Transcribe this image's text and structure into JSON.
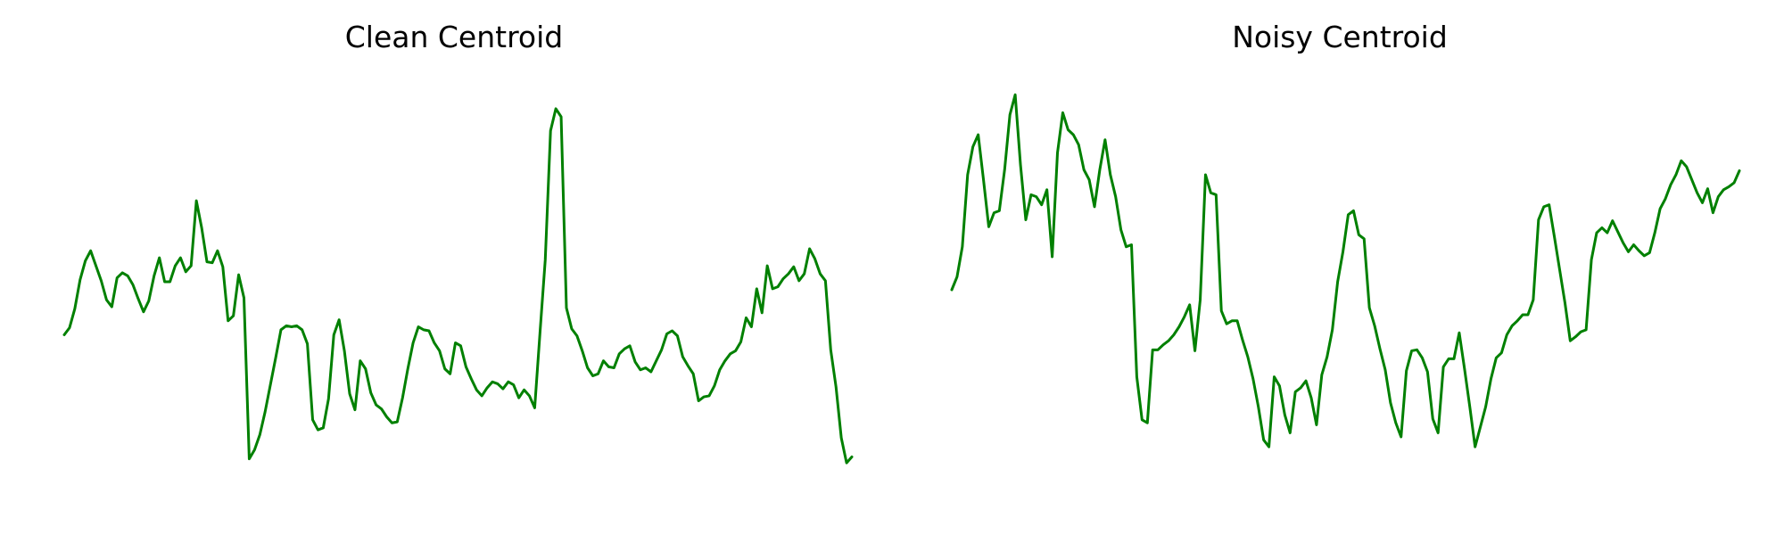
{
  "figure": {
    "line_color": "#008000"
  },
  "chart_data": [
    {
      "type": "line",
      "title": "Clean Centroid",
      "xlabel": "",
      "ylabel": "",
      "axes": "off",
      "grid": false,
      "line_color": "#008000",
      "xlim": [
        0,
        149
      ],
      "ylim": [
        -2.0,
        2.1
      ],
      "series": [
        {
          "values": [
            -0.4,
            -0.33,
            -0.14,
            0.15,
            0.34,
            0.44,
            0.29,
            0.14,
            -0.05,
            -0.12,
            0.17,
            0.22,
            0.19,
            0.1,
            -0.04,
            -0.17,
            -0.06,
            0.19,
            0.37,
            0.13,
            0.13,
            0.29,
            0.37,
            0.23,
            0.29,
            0.94,
            0.67,
            0.33,
            0.32,
            0.44,
            0.28,
            -0.26,
            -0.21,
            0.2,
            -0.03,
            -1.64,
            -1.55,
            -1.4,
            -1.17,
            -0.9,
            -0.63,
            -0.35,
            -0.31,
            -0.32,
            -0.31,
            -0.35,
            -0.49,
            -1.25,
            -1.35,
            -1.33,
            -1.04,
            -0.4,
            -0.25,
            -0.56,
            -0.99,
            -1.15,
            -0.66,
            -0.74,
            -0.98,
            -1.1,
            -1.14,
            -1.22,
            -1.28,
            -1.27,
            -1.03,
            -0.74,
            -0.48,
            -0.32,
            -0.35,
            -0.36,
            -0.48,
            -0.56,
            -0.74,
            -0.79,
            -0.48,
            -0.51,
            -0.72,
            -0.84,
            -0.95,
            -1.01,
            -0.93,
            -0.87,
            -0.89,
            -0.94,
            -0.87,
            -0.9,
            -1.03,
            -0.95,
            -1.01,
            -1.13,
            -0.38,
            0.35,
            1.64,
            1.86,
            1.78,
            -0.13,
            -0.34,
            -0.41,
            -0.56,
            -0.73,
            -0.81,
            -0.79,
            -0.66,
            -0.72,
            -0.73,
            -0.59,
            -0.54,
            -0.51,
            -0.67,
            -0.75,
            -0.73,
            -0.77,
            -0.66,
            -0.55,
            -0.39,
            -0.36,
            -0.41,
            -0.62,
            -0.71,
            -0.79,
            -1.06,
            -1.02,
            -1.01,
            -0.91,
            -0.75,
            -0.66,
            -0.59,
            -0.56,
            -0.47,
            -0.23,
            -0.32,
            0.06,
            -0.18,
            0.29,
            0.06,
            0.08,
            0.16,
            0.21,
            0.28,
            0.14,
            0.21,
            0.46,
            0.36,
            0.21,
            0.14,
            -0.55,
            -0.92,
            -1.43,
            -1.68,
            -1.62
          ]
        }
      ]
    },
    {
      "type": "line",
      "title": "Noisy Centroid",
      "xlabel": "",
      "ylabel": "",
      "axes": "off",
      "grid": false,
      "line_color": "#008000",
      "xlim": [
        0,
        149
      ],
      "ylim": [
        -2.0,
        2.1
      ],
      "series": [
        {
          "values": [
            0.05,
            0.18,
            0.48,
            1.2,
            1.48,
            1.6,
            1.15,
            0.68,
            0.82,
            0.84,
            1.25,
            1.8,
            2.0,
            1.3,
            0.75,
            1.0,
            0.98,
            0.9,
            1.05,
            0.38,
            1.42,
            1.82,
            1.65,
            1.6,
            1.5,
            1.25,
            1.15,
            0.88,
            1.25,
            1.55,
            1.2,
            0.98,
            0.65,
            0.48,
            0.5,
            -0.82,
            -1.25,
            -1.28,
            -0.55,
            -0.55,
            -0.5,
            -0.46,
            -0.4,
            -0.32,
            -0.22,
            -0.1,
            -0.56,
            -0.05,
            1.2,
            1.02,
            1.0,
            -0.16,
            -0.29,
            -0.26,
            -0.26,
            -0.45,
            -0.62,
            -0.84,
            -1.12,
            -1.45,
            -1.52,
            -0.82,
            -0.91,
            -1.2,
            -1.38,
            -0.97,
            -0.93,
            -0.86,
            -1.03,
            -1.3,
            -0.8,
            -0.62,
            -0.35,
            0.13,
            0.43,
            0.8,
            0.84,
            0.6,
            0.56,
            -0.13,
            -0.31,
            -0.54,
            -0.75,
            -1.08,
            -1.28,
            -1.42,
            -0.76,
            -0.56,
            -0.55,
            -0.63,
            -0.77,
            -1.24,
            -1.38,
            -0.72,
            -0.64,
            -0.64,
            -0.38,
            -0.74,
            -1.12,
            -1.52,
            -1.32,
            -1.12,
            -0.84,
            -0.63,
            -0.58,
            -0.4,
            -0.31,
            -0.26,
            -0.2,
            -0.2,
            -0.05,
            0.75,
            0.88,
            0.9,
            0.58,
            0.25,
            -0.08,
            -0.46,
            -0.42,
            -0.37,
            -0.35,
            0.35,
            0.62,
            0.67,
            0.62,
            0.74,
            0.63,
            0.52,
            0.43,
            0.5,
            0.44,
            0.39,
            0.42,
            0.62,
            0.86,
            0.96,
            1.1,
            1.2,
            1.34,
            1.28,
            1.15,
            1.02,
            0.92,
            1.06,
            0.82,
            0.98,
            1.05,
            1.08,
            1.12,
            1.24
          ]
        }
      ]
    }
  ]
}
